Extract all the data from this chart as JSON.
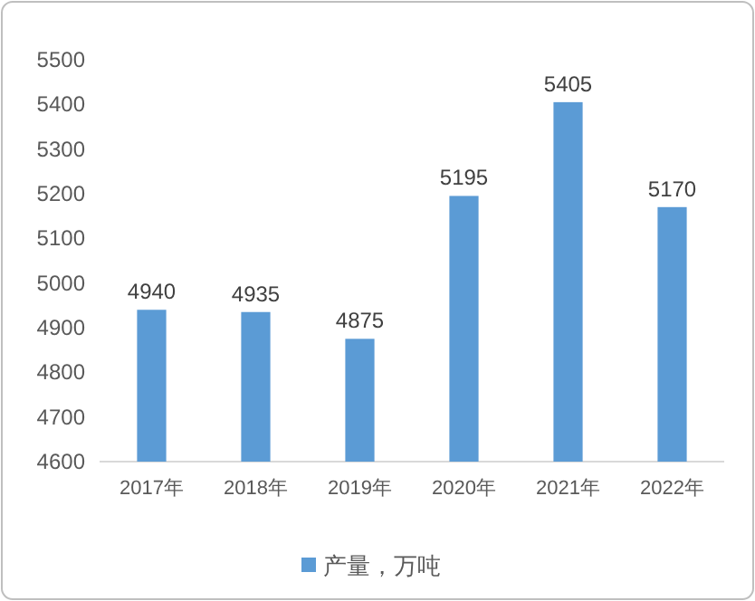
{
  "chart_data": {
    "type": "bar",
    "categories": [
      "2017年",
      "2018年",
      "2019年",
      "2020年",
      "2021年",
      "2022年"
    ],
    "series": [
      {
        "name": "产量，万吨",
        "color": "#5b9bd5",
        "values": [
          4940,
          4935,
          4875,
          5195,
          5405,
          5170
        ]
      }
    ],
    "ylim": [
      4600,
      5500
    ],
    "yticks": [
      4600,
      4700,
      4800,
      4900,
      5000,
      5100,
      5200,
      5300,
      5400,
      5500
    ],
    "data_labels": true,
    "legend": "bottom"
  }
}
